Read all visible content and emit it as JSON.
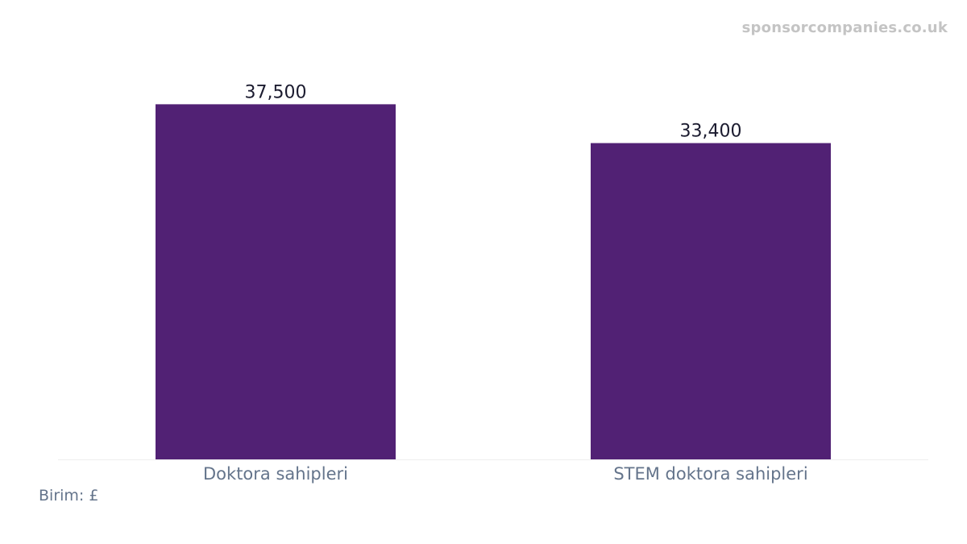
{
  "watermark": "sponsorcompanies.co.uk",
  "unit_note": "Birim: £",
  "colors": {
    "bar": "#512174",
    "axis": "#eeeeee",
    "value_text": "#1b1b2f",
    "tick_text": "#64748b"
  },
  "chart_data": {
    "type": "bar",
    "categories": [
      "Doktora sahipleri",
      "STEM doktora sahipleri"
    ],
    "values": [
      37500,
      33400
    ],
    "value_labels": [
      "37,500",
      "33,400"
    ],
    "title": "",
    "xlabel": "",
    "ylabel": "",
    "ylim": [
      0,
      40000
    ],
    "grid": false,
    "legend": "none"
  }
}
